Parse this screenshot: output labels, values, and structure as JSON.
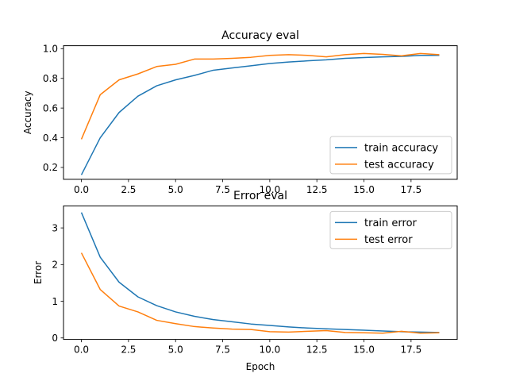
{
  "chart_data": [
    {
      "type": "line",
      "title": "Accuracy eval",
      "xlabel": "",
      "ylabel": "Accuracy",
      "xlim": [
        -0.95,
        19.95
      ],
      "ylim": [
        0.12,
        1.02
      ],
      "x_ticks": [
        0.0,
        2.5,
        5.0,
        7.5,
        10.0,
        12.5,
        15.0,
        17.5
      ],
      "x_tick_labels": [
        "0.0",
        "2.5",
        "5.0",
        "7.5",
        "10.0",
        "12.5",
        "15.0",
        "17.5"
      ],
      "y_ticks": [
        0.2,
        0.4,
        0.6,
        0.8,
        1.0
      ],
      "y_tick_labels": [
        "0.2",
        "0.4",
        "0.6",
        "0.8",
        "1.0"
      ],
      "grid": false,
      "legend_position": "lower-right",
      "x": [
        0,
        1,
        2,
        3,
        4,
        5,
        6,
        7,
        8,
        9,
        10,
        11,
        12,
        13,
        14,
        15,
        16,
        17,
        18,
        19
      ],
      "series": [
        {
          "name": "train accuracy",
          "color": "#1f77b4",
          "values": [
            0.15,
            0.4,
            0.57,
            0.68,
            0.75,
            0.79,
            0.82,
            0.855,
            0.87,
            0.885,
            0.9,
            0.91,
            0.918,
            0.925,
            0.935,
            0.94,
            0.945,
            0.948,
            0.955,
            0.955
          ]
        },
        {
          "name": "test accuracy",
          "color": "#ff7f0e",
          "values": [
            0.39,
            0.69,
            0.79,
            0.83,
            0.88,
            0.895,
            0.93,
            0.93,
            0.935,
            0.942,
            0.955,
            0.96,
            0.955,
            0.945,
            0.96,
            0.968,
            0.962,
            0.952,
            0.968,
            0.96
          ]
        }
      ]
    },
    {
      "type": "line",
      "title": "Error eval",
      "xlabel": "Epoch",
      "ylabel": "Error",
      "xlim": [
        -0.95,
        19.95
      ],
      "ylim": [
        -0.04,
        3.6
      ],
      "x_ticks": [
        0.0,
        2.5,
        5.0,
        7.5,
        10.0,
        12.5,
        15.0,
        17.5
      ],
      "x_tick_labels": [
        "0.0",
        "2.5",
        "5.0",
        "7.5",
        "10.0",
        "12.5",
        "15.0",
        "17.5"
      ],
      "y_ticks": [
        0,
        1,
        2,
        3
      ],
      "y_tick_labels": [
        "0",
        "1",
        "2",
        "3"
      ],
      "grid": false,
      "legend_position": "upper-right",
      "x": [
        0,
        1,
        2,
        3,
        4,
        5,
        6,
        7,
        8,
        9,
        10,
        11,
        12,
        13,
        14,
        15,
        16,
        17,
        18,
        19
      ],
      "series": [
        {
          "name": "train error",
          "color": "#1f77b4",
          "values": [
            3.42,
            2.2,
            1.52,
            1.12,
            0.88,
            0.71,
            0.59,
            0.5,
            0.44,
            0.38,
            0.34,
            0.3,
            0.27,
            0.25,
            0.23,
            0.21,
            0.19,
            0.17,
            0.16,
            0.15
          ]
        },
        {
          "name": "test error",
          "color": "#ff7f0e",
          "values": [
            2.32,
            1.32,
            0.87,
            0.71,
            0.48,
            0.39,
            0.31,
            0.27,
            0.24,
            0.23,
            0.17,
            0.16,
            0.18,
            0.2,
            0.15,
            0.14,
            0.13,
            0.18,
            0.13,
            0.14
          ]
        }
      ]
    }
  ]
}
